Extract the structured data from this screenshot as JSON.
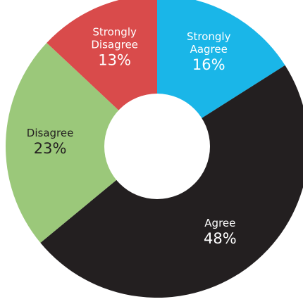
{
  "chart_data": {
    "type": "pie",
    "title": "",
    "donut": true,
    "slices": [
      {
        "label_lines": [
          "Strongly",
          "Aagree"
        ],
        "value": 16,
        "value_label": "16%",
        "color": "#1ab6e8",
        "text_color": "#ffffff"
      },
      {
        "label_lines": [
          "Agree"
        ],
        "value": 48,
        "value_label": "48%",
        "color": "#231f20",
        "text_color": "#ffffff"
      },
      {
        "label_lines": [
          "Disagree"
        ],
        "value": 23,
        "value_label": "23%",
        "color": "#9bc87a",
        "text_color": "#231f20"
      },
      {
        "label_lines": [
          "Strongly",
          "Disagree"
        ],
        "value": 13,
        "value_label": "13%",
        "color": "#d94b4b",
        "text_color": "#ffffff"
      }
    ]
  }
}
